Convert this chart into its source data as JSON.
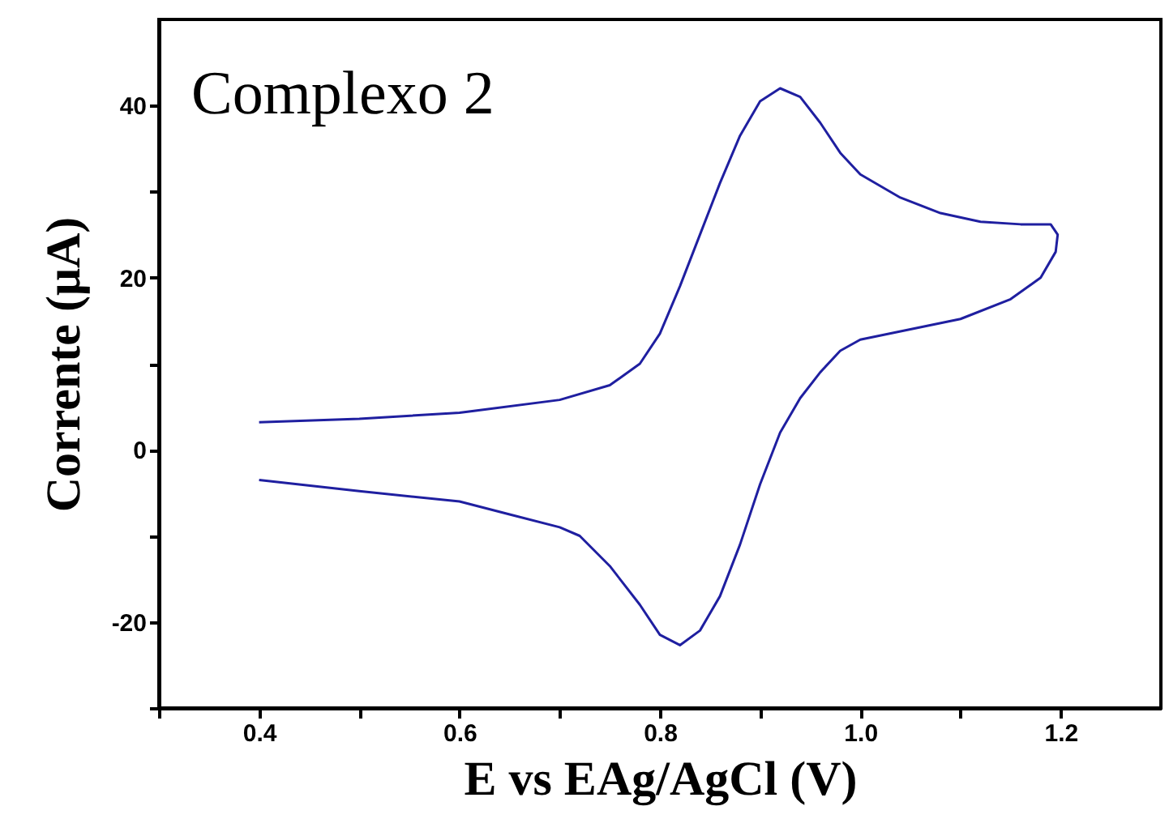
{
  "chart_data": {
    "type": "line",
    "xlabel": "E vs EAg/AgCl (V)",
    "ylabel": "Corrente (μA)",
    "annotations": [
      "Complexo 2"
    ],
    "xlim": [
      0.3,
      1.3
    ],
    "ylim": [
      -30,
      50
    ],
    "xticks": [
      {
        "value": 0.3,
        "label": null
      },
      0.4,
      {
        "value": 0.5,
        "label": null
      },
      0.6,
      {
        "value": 0.7,
        "label": null
      },
      0.8,
      {
        "value": 0.9,
        "label": null
      },
      {
        "value": 1.0,
        "label": "1.0"
      },
      {
        "value": 1.1,
        "label": null
      },
      1.2
    ],
    "yticks": [
      {
        "value": -30,
        "label": null
      },
      -20,
      {
        "value": -10,
        "label": null
      },
      0,
      {
        "value": 10,
        "label": null
      },
      20,
      {
        "value": 30,
        "label": null
      },
      40
    ],
    "grid": false,
    "marker": "none",
    "line_style": "solid",
    "series": [
      {
        "color": "#1f1fa0",
        "x": [
          0.4,
          0.5,
          0.6,
          0.7,
          0.75,
          0.78,
          0.8,
          0.82,
          0.84,
          0.86,
          0.88,
          0.9,
          0.92,
          0.94,
          0.96,
          0.98,
          1.0,
          1.04,
          1.08,
          1.12,
          1.16,
          1.19,
          1.197,
          1.195,
          1.18,
          1.15,
          1.1,
          1.05,
          1.0,
          0.98,
          0.96,
          0.94,
          0.92,
          0.9,
          0.88,
          0.86,
          0.84,
          0.82,
          0.8,
          0.78,
          0.75,
          0.72,
          0.7,
          0.65,
          0.6,
          0.5,
          0.4
        ],
        "values": [
          3.2,
          3.6,
          4.3,
          5.8,
          7.5,
          10,
          13.5,
          19,
          25,
          31,
          36.5,
          40.5,
          42,
          41,
          38,
          34.5,
          32,
          29.3,
          27.5,
          26.5,
          26.2,
          26.2,
          25,
          23,
          20,
          17.5,
          15.2,
          14,
          12.8,
          11.5,
          9,
          6,
          2,
          -4,
          -11,
          -17,
          -21,
          -22.7,
          -21.5,
          -18,
          -13.5,
          -10,
          -9,
          -7.5,
          -6,
          -4.8,
          -3.5
        ]
      }
    ]
  }
}
